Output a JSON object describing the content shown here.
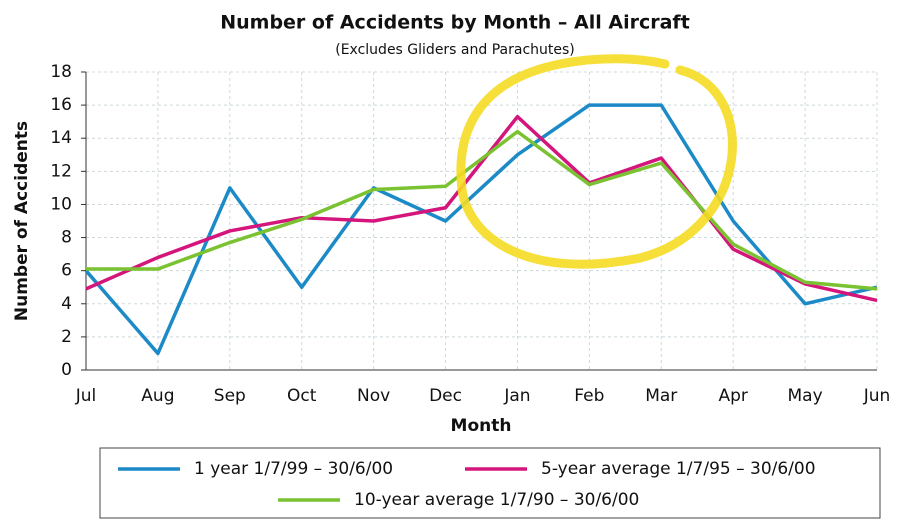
{
  "chart_data": {
    "type": "line",
    "title": "Number of Accidents by Month – All Aircraft",
    "subtitle": "(Excludes Gliders and Parachutes)",
    "x_label": "Month",
    "y_label": "Number of Accidents",
    "categories": [
      "Jul",
      "Aug",
      "Sep",
      "Oct",
      "Nov",
      "Dec",
      "Jan",
      "Feb",
      "Mar",
      "Apr",
      "May",
      "Jun"
    ],
    "series": [
      {
        "name": "1 year 1/7/99 – 30/6/00",
        "color": "#1b8ac6",
        "values": [
          6,
          1,
          11,
          5,
          11,
          9,
          13,
          16,
          16,
          9,
          4,
          5
        ]
      },
      {
        "name": "5-year average 1/7/95 – 30/6/00",
        "color": "#d4157c",
        "values": [
          4.9,
          6.8,
          8.4,
          9.2,
          9.0,
          9.8,
          15.3,
          11.3,
          12.8,
          7.3,
          5.2,
          4.2
        ]
      },
      {
        "name": "10-year average 1/7/90 – 30/6/00",
        "color": "#7ac231",
        "values": [
          6.1,
          6.1,
          7.7,
          9.1,
          10.9,
          11.1,
          14.4,
          11.2,
          12.5,
          7.6,
          5.3,
          4.9
        ]
      }
    ],
    "ylim": [
      0,
      18
    ],
    "yticks": [
      0,
      2,
      4,
      6,
      8,
      10,
      12,
      14,
      16,
      18
    ],
    "grid": true
  }
}
